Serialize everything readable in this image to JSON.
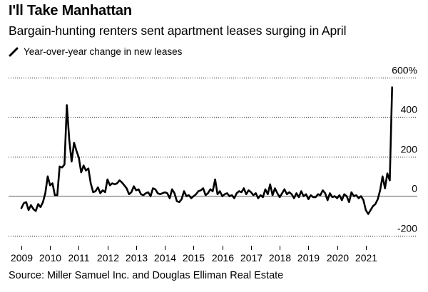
{
  "title": "I'll Take Manhattan",
  "subtitle": "Bargain-hunting renters sent apartment leases surging in April",
  "legend": {
    "label": "Year-over-year change in new leases",
    "icon": "line-segment-icon"
  },
  "source": "Source: Miller Samuel Inc. and Douglas Elliman Real Estate",
  "colors": {
    "line": "#000000",
    "grid": "#000000",
    "zero": "#888888"
  },
  "chart_data": {
    "type": "line",
    "title": "I'll Take Manhattan",
    "xlabel": "",
    "ylabel": "Year-over-year change in new leases (%)",
    "xlim": [
      2009,
      2021.65
    ],
    "ylim": [
      -250,
      660
    ],
    "yticks": [
      {
        "value": 600,
        "label": "600%"
      },
      {
        "value": 400,
        "label": "400"
      },
      {
        "value": 200,
        "label": "200"
      },
      {
        "value": 0,
        "label": "0"
      },
      {
        "value": -200,
        "label": "-200"
      }
    ],
    "xticks": [
      {
        "value": 2009,
        "label": "2009"
      },
      {
        "value": 2010,
        "label": "2010"
      },
      {
        "value": 2011,
        "label": "2011"
      },
      {
        "value": 2012,
        "label": "2012"
      },
      {
        "value": 2013,
        "label": "2013"
      },
      {
        "value": 2014,
        "label": "2014"
      },
      {
        "value": 2015,
        "label": "2015"
      },
      {
        "value": 2016,
        "label": "2016"
      },
      {
        "value": 2017,
        "label": "2017"
      },
      {
        "value": 2018,
        "label": "2018"
      },
      {
        "value": 2019,
        "label": "2019"
      },
      {
        "value": 2020,
        "label": "2020"
      },
      {
        "value": 2021,
        "label": "2021"
      }
    ],
    "series": [
      {
        "name": "Year-over-year change in new leases",
        "start": 2009.0,
        "step": 0.08333,
        "values": [
          -60,
          -35,
          -30,
          -70,
          -45,
          -65,
          -75,
          -40,
          -55,
          -30,
          15,
          100,
          55,
          65,
          5,
          5,
          150,
          145,
          160,
          460,
          285,
          175,
          270,
          230,
          195,
          120,
          155,
          130,
          140,
          65,
          20,
          25,
          45,
          15,
          30,
          20,
          85,
          55,
          65,
          60,
          65,
          80,
          70,
          55,
          40,
          10,
          20,
          50,
          30,
          35,
          10,
          5,
          15,
          20,
          0,
          40,
          35,
          15,
          10,
          15,
          20,
          15,
          -10,
          35,
          15,
          -25,
          -30,
          -15,
          25,
          0,
          5,
          -10,
          0,
          10,
          25,
          30,
          40,
          5,
          15,
          35,
          25,
          85,
          10,
          25,
          0,
          10,
          15,
          0,
          5,
          -10,
          15,
          25,
          20,
          40,
          10,
          30,
          20,
          5,
          15,
          -10,
          5,
          -5,
          35,
          10,
          60,
          5,
          40,
          15,
          -5,
          15,
          35,
          10,
          20,
          10,
          -10,
          15,
          -5,
          25,
          0,
          10,
          -15,
          5,
          -5,
          -5,
          10,
          5,
          30,
          15,
          -20,
          15,
          -5,
          0,
          -10,
          5,
          -20,
          10,
          0,
          -30,
          20,
          0,
          5,
          -10,
          0,
          -20,
          -70,
          -90,
          -70,
          -50,
          -40,
          -15,
          30,
          100,
          40,
          115,
          80,
          550
        ]
      }
    ]
  }
}
